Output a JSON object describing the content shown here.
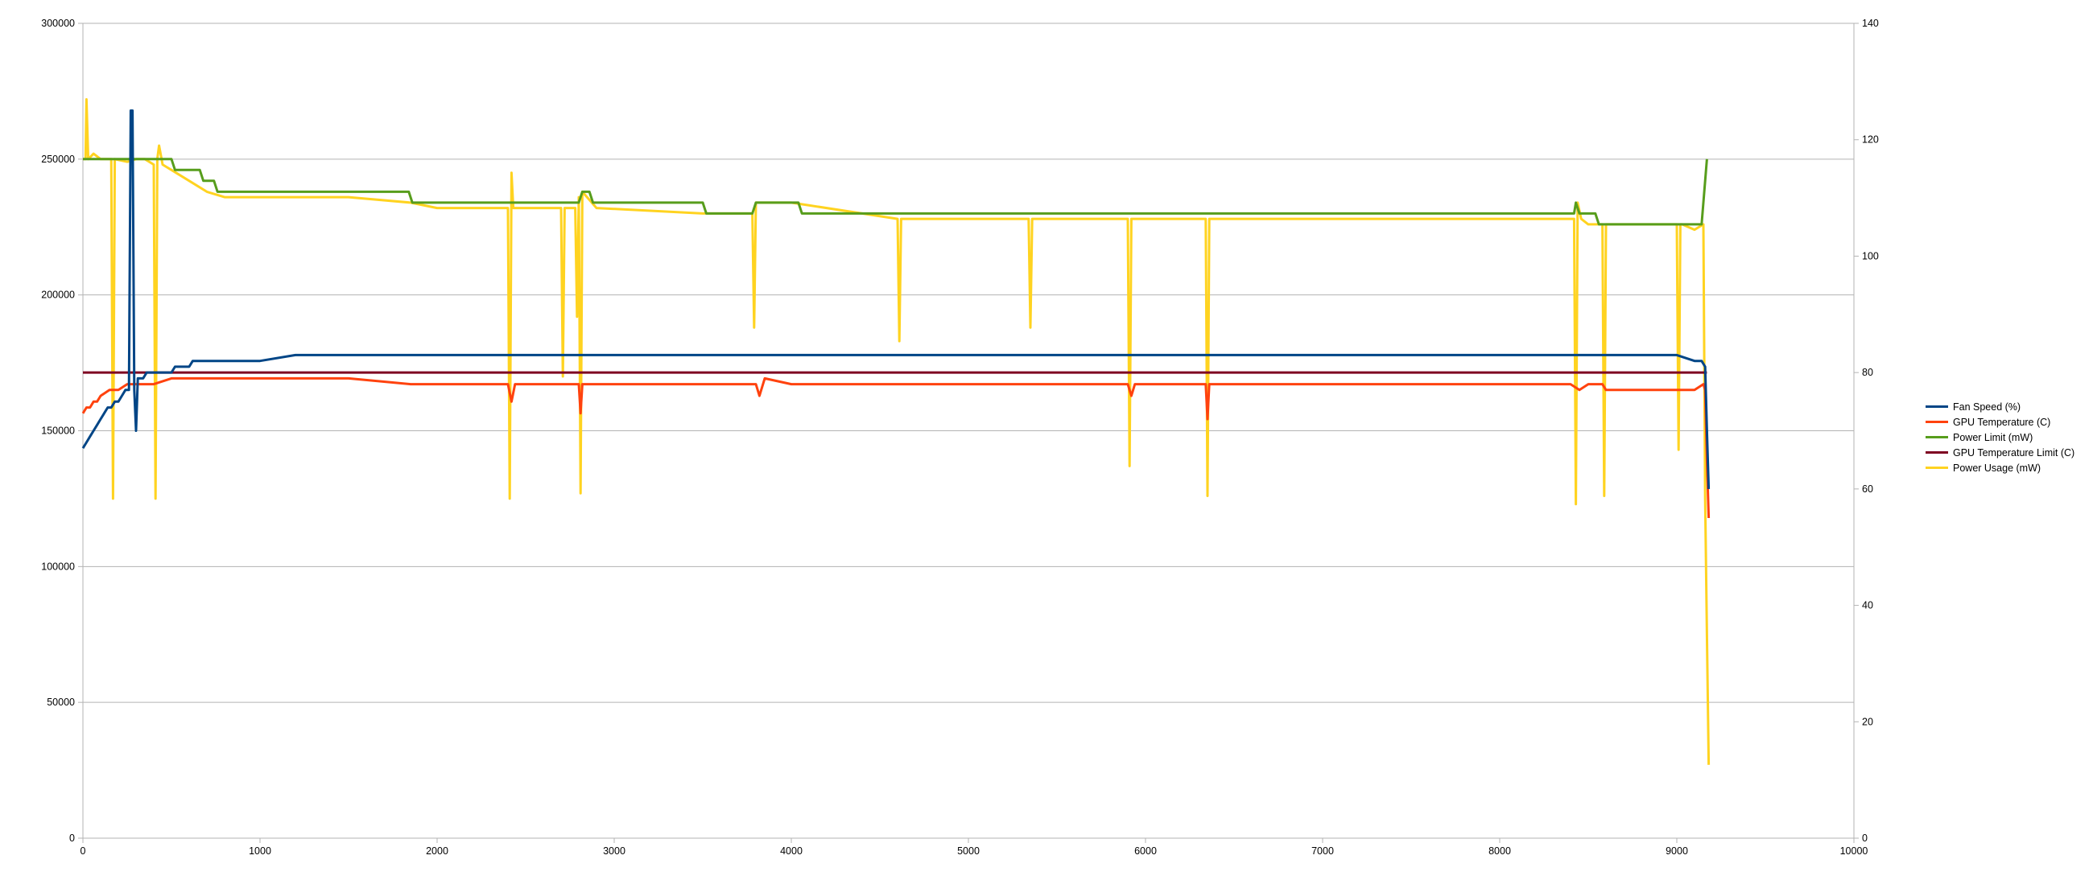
{
  "chart_data": {
    "type": "line",
    "title": "",
    "xlabel": "",
    "ylabel": "",
    "y2label": "",
    "xlim": [
      0,
      10000
    ],
    "ylim": [
      0,
      300000
    ],
    "y2lim": [
      0,
      140
    ],
    "x_ticks": [
      "0",
      "1000",
      "2000",
      "3000",
      "4000",
      "5000",
      "6000",
      "7000",
      "8000",
      "9000",
      "10000"
    ],
    "y_ticks": [
      "0",
      "50000",
      "100000",
      "150000",
      "200000",
      "250000",
      "300000"
    ],
    "y2_ticks": [
      "0",
      "20",
      "40",
      "60",
      "80",
      "100",
      "120",
      "140"
    ],
    "grid": "horizontal",
    "legend_position": "right",
    "series": [
      {
        "name": "Fan Speed (%)",
        "axis": "right",
        "color": "#004586",
        "x": [
          0,
          20,
          40,
          60,
          80,
          100,
          120,
          140,
          160,
          180,
          200,
          220,
          240,
          260,
          270,
          280,
          290,
          300,
          310,
          320,
          340,
          360,
          380,
          400,
          450,
          500,
          520,
          600,
          620,
          700,
          750,
          1000,
          1200,
          1500,
          1700,
          2000,
          2500,
          3000,
          3500,
          4000,
          4500,
          5000,
          5500,
          6000,
          6500,
          7000,
          7500,
          8000,
          8500,
          9000,
          9100,
          9140,
          9160,
          9170,
          9180
        ],
        "y": [
          67,
          68,
          69,
          70,
          71,
          72,
          73,
          74,
          74,
          75,
          75,
          76,
          77,
          77,
          125,
          125,
          77,
          70,
          79,
          79,
          79,
          80,
          80,
          80,
          80,
          80,
          81,
          81,
          82,
          82,
          82,
          82,
          83,
          83,
          83,
          83,
          83,
          83,
          83,
          83,
          83,
          83,
          83,
          83,
          83,
          83,
          83,
          83,
          83,
          83,
          82,
          82,
          81,
          70,
          60
        ]
      },
      {
        "name": "GPU Temperature (C)",
        "axis": "right",
        "color": "#ff420e",
        "x": [
          0,
          20,
          40,
          60,
          80,
          100,
          150,
          200,
          250,
          300,
          400,
          500,
          600,
          800,
          1000,
          1500,
          1850,
          2000,
          2400,
          2420,
          2440,
          2500,
          2800,
          2810,
          2820,
          2900,
          3500,
          3800,
          3820,
          3850,
          4000,
          4500,
          5000,
          5900,
          5920,
          5940,
          6000,
          6340,
          6350,
          6360,
          6400,
          7000,
          8000,
          8400,
          8450,
          8500,
          8580,
          8600,
          8620,
          9000,
          9100,
          9150,
          9160,
          9170,
          9180
        ],
        "y": [
          73,
          74,
          74,
          75,
          75,
          76,
          77,
          77,
          78,
          78,
          78,
          79,
          79,
          79,
          79,
          79,
          78,
          78,
          78,
          75,
          78,
          78,
          78,
          73,
          78,
          78,
          78,
          78,
          76,
          79,
          78,
          78,
          78,
          78,
          76,
          78,
          78,
          78,
          72,
          78,
          78,
          78,
          78,
          78,
          77,
          78,
          78,
          77,
          77,
          77,
          77,
          78,
          77,
          65,
          55
        ]
      },
      {
        "name": "Power Limit (mW)",
        "axis": "left",
        "color": "#579d1c",
        "x": [
          0,
          500,
          520,
          660,
          680,
          740,
          760,
          1840,
          1860,
          2800,
          2820,
          2860,
          2880,
          3500,
          3520,
          3780,
          3800,
          4040,
          4060,
          8420,
          8430,
          8450,
          8540,
          8560,
          9120,
          9140,
          9170
        ],
        "y": [
          250000,
          250000,
          246000,
          246000,
          242000,
          242000,
          238000,
          238000,
          234000,
          234000,
          238000,
          238000,
          234000,
          234000,
          230000,
          230000,
          234000,
          234000,
          230000,
          230000,
          234000,
          230000,
          230000,
          226000,
          226000,
          226000,
          250000
        ]
      },
      {
        "name": "GPU Temperature Limit (C)",
        "axis": "right",
        "color": "#7e0021",
        "x": [
          0,
          9170
        ],
        "y": [
          80,
          80
        ]
      },
      {
        "name": "Power Usage (mW)",
        "axis": "left",
        "color": "#ffd320",
        "x": [
          0,
          15,
          20,
          30,
          60,
          100,
          160,
          170,
          180,
          250,
          300,
          350,
          400,
          410,
          420,
          430,
          450,
          500,
          600,
          700,
          800,
          1000,
          1500,
          1850,
          2000,
          2400,
          2410,
          2420,
          2430,
          2500,
          2700,
          2710,
          2720,
          2780,
          2790,
          2800,
          2810,
          2820,
          2900,
          3500,
          3780,
          3790,
          3800,
          4000,
          4600,
          4610,
          4620,
          5000,
          5340,
          5350,
          5360,
          5900,
          5910,
          5920,
          5940,
          6000,
          6340,
          6350,
          6360,
          6380,
          7000,
          8000,
          8420,
          8430,
          8440,
          8460,
          8500,
          8580,
          8590,
          8600,
          8700,
          9000,
          9010,
          9020,
          9030,
          9100,
          9150,
          9160,
          9170,
          9180
        ],
        "y": [
          250000,
          250000,
          272000,
          250000,
          252000,
          250000,
          250000,
          125000,
          250000,
          249000,
          250000,
          250000,
          248000,
          125000,
          250000,
          255000,
          248000,
          246000,
          242000,
          238000,
          236000,
          236000,
          236000,
          234000,
          232000,
          232000,
          125000,
          245000,
          232000,
          232000,
          232000,
          170000,
          232000,
          232000,
          192000,
          236000,
          127000,
          238000,
          232000,
          230000,
          230000,
          188000,
          234000,
          234000,
          228000,
          183000,
          228000,
          228000,
          228000,
          188000,
          228000,
          228000,
          137000,
          228000,
          228000,
          228000,
          228000,
          126000,
          228000,
          228000,
          228000,
          228000,
          228000,
          123000,
          234000,
          228000,
          226000,
          226000,
          126000,
          226000,
          226000,
          226000,
          143000,
          226000,
          226000,
          224000,
          226000,
          125000,
          75000,
          27000
        ]
      }
    ]
  }
}
